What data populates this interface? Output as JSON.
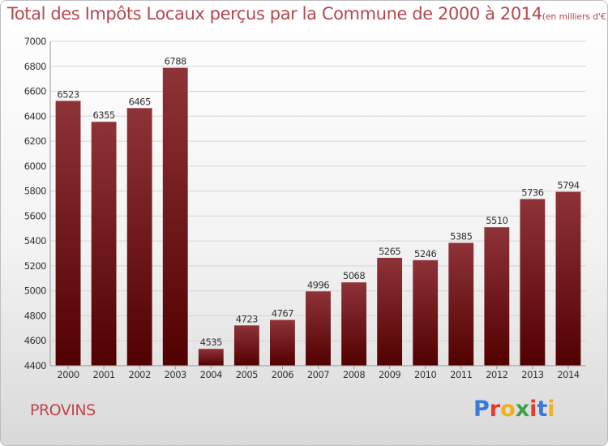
{
  "header": {
    "title": "Total des Impôts Locaux perçus par la Commune de 2000 à 2014",
    "unit": "(en milliers d'€)"
  },
  "footer": {
    "commune": "PROVINS",
    "brand_letters": [
      {
        "ch": "P",
        "color": "#3a7bd5"
      },
      {
        "ch": "r",
        "color": "#e53935"
      },
      {
        "ch": "o",
        "color": "#f2b01e"
      },
      {
        "ch": "x",
        "color": "#43a047"
      },
      {
        "ch": "i",
        "color": "#e53935"
      },
      {
        "ch": "t",
        "color": "#3a7bd5"
      },
      {
        "ch": "i",
        "color": "#f2b01e"
      }
    ]
  },
  "colors": {
    "bar_top": "#8e3338",
    "bar_bottom": "#520000",
    "grid": "#d4d4d4",
    "axis_text": "#333333",
    "title": "#b5484e"
  },
  "chart_data": {
    "type": "bar",
    "title": "Total des Impôts Locaux perçus par la Commune de 2000 à 2014",
    "ylabel": "",
    "xlabel": "",
    "categories": [
      "2000",
      "2001",
      "2002",
      "2003",
      "2004",
      "2005",
      "2006",
      "2007",
      "2008",
      "2009",
      "2010",
      "2011",
      "2012",
      "2013",
      "2014"
    ],
    "values": [
      6523,
      6355,
      6465,
      6788,
      4535,
      4723,
      4767,
      4996,
      5068,
      5265,
      5246,
      5385,
      5510,
      5736,
      5794
    ],
    "ylim": [
      4400,
      7000
    ],
    "yticks": [
      4400,
      4600,
      4800,
      5000,
      5200,
      5400,
      5600,
      5800,
      6000,
      6200,
      6400,
      6600,
      6800,
      7000
    ],
    "grid": true
  }
}
